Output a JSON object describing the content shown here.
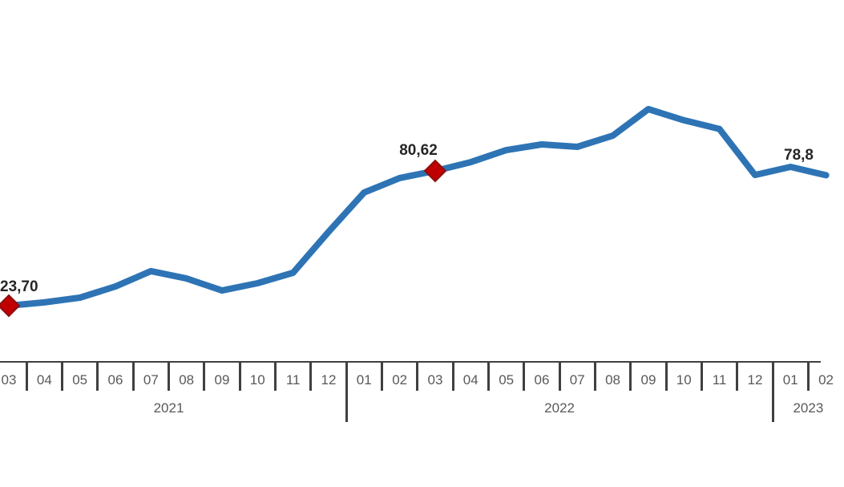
{
  "chart_data": {
    "type": "line",
    "title": "",
    "xlabel": "",
    "ylabel": "",
    "legend": "none",
    "grid": false,
    "ylim": [
      20,
      110
    ],
    "categories": [
      "2021-03",
      "2021-04",
      "2021-05",
      "2021-06",
      "2021-07",
      "2021-08",
      "2021-09",
      "2021-10",
      "2021-11",
      "2021-12",
      "2022-01",
      "2022-02",
      "2022-03",
      "2022-04",
      "2022-05",
      "2022-06",
      "2022-07",
      "2022-08",
      "2022-09",
      "2022-10",
      "2022-11",
      "2022-12",
      "2023-01",
      "2023-02"
    ],
    "values": [
      23.7,
      25.1,
      27.1,
      31.8,
      38.3,
      35.2,
      30.1,
      33.2,
      37.6,
      54.9,
      71.5,
      77.6,
      80.62,
      84.3,
      89.4,
      91.8,
      90.8,
      95.5,
      106.7,
      102.0,
      98.3,
      78.9,
      82.3,
      78.8
    ],
    "labeled_points": [
      {
        "index": 0,
        "label": "23,70",
        "marker_visible": true
      },
      {
        "index": 12,
        "label": "80,62",
        "marker_visible": true
      },
      {
        "index": 23,
        "label": "78,8",
        "marker_visible": false
      }
    ],
    "x_axis": {
      "month_labels": [
        "03",
        "04",
        "05",
        "06",
        "07",
        "08",
        "09",
        "10",
        "11",
        "12",
        "01",
        "02",
        "03",
        "04",
        "05",
        "06",
        "07",
        "08",
        "09",
        "10",
        "11",
        "12",
        "01",
        "02"
      ],
      "year_groups": [
        {
          "label": "2021",
          "months": 10
        },
        {
          "label": "2022",
          "months": 12
        },
        {
          "label": "2023",
          "months": 2
        }
      ]
    },
    "colors": {
      "line": "#2E74B5",
      "marker_fill": "#C00000",
      "marker_stroke": "#8B1010",
      "point_label_text": "#262626",
      "axis_line": "#404040",
      "axis_text": "#595959",
      "background": "#FFFFFF"
    }
  }
}
